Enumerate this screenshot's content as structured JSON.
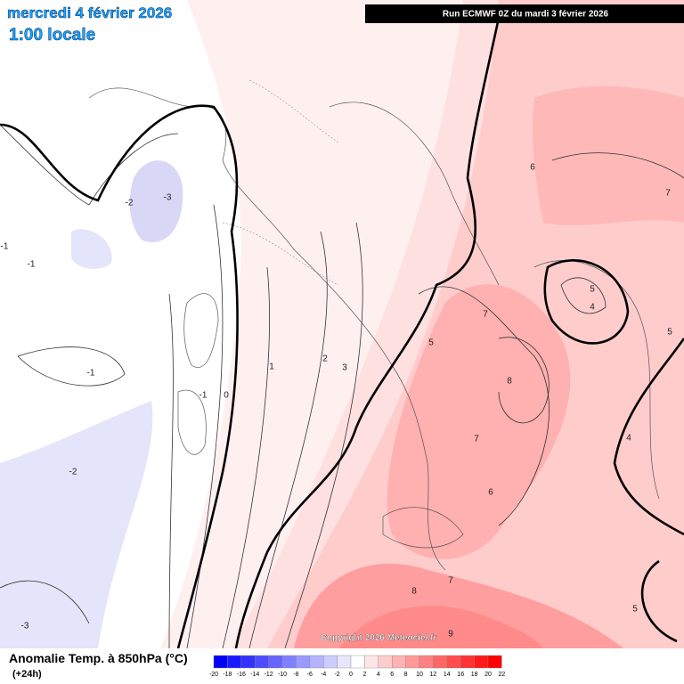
{
  "header": {
    "date": "mercredi 4 février 2026",
    "time": "1:00 locale",
    "run": "Run ECMWF 0Z du mardi 3 février 2026"
  },
  "copyright": "Copyright 2026 Meteociel.fr",
  "contour_labels": [
    -1,
    -1,
    -2,
    -3,
    -1,
    -1,
    0,
    1,
    2,
    3,
    -2,
    -3,
    5,
    7,
    8,
    7,
    6,
    6,
    7,
    5,
    4,
    5,
    4,
    5,
    8,
    7,
    9
  ],
  "legend": {
    "title": "Anomalie Temp. à 850hPa (°C)",
    "subtitle": "(+24h)",
    "ticks": [
      -20,
      -18,
      -16,
      -14,
      -12,
      -10,
      -8,
      -6,
      -4,
      -2,
      0,
      2,
      4,
      6,
      8,
      10,
      12,
      14,
      16,
      18,
      20,
      22
    ],
    "colors": [
      "#0000ff",
      "#1a1aff",
      "#3333ff",
      "#4d4dff",
      "#6666ff",
      "#8080ff",
      "#9999ff",
      "#b3b3ff",
      "#ccccff",
      "#e6e6ff",
      "#ffffff",
      "#ffe6e6",
      "#ffcccc",
      "#ffb3b3",
      "#ff9999",
      "#ff8080",
      "#ff6666",
      "#ff4d4d",
      "#ff3333",
      "#ff1a1a",
      "#ff0000"
    ]
  }
}
